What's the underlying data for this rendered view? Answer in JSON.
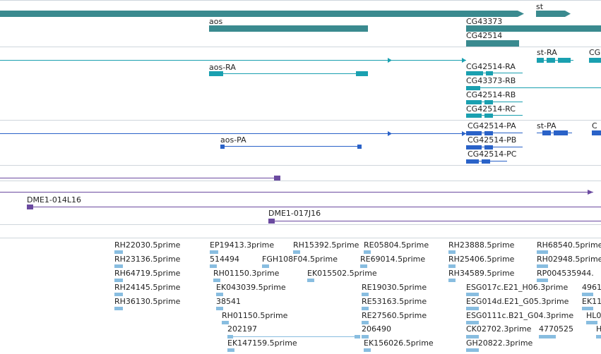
{
  "genes": {
    "labels": [
      "st",
      "aos",
      "CG43373",
      "CG42514"
    ]
  },
  "transcripts": {
    "labels": [
      "st-RA",
      "CG",
      "aos-RA",
      "CG42514-RA",
      "CG43373-RB",
      "CG42514-RB",
      "CG42514-RC"
    ]
  },
  "proteins": {
    "labels": [
      "CG42514-PA",
      "st-PA",
      "C",
      "aos-PA",
      "CG42514-PB",
      "CG42514-PC"
    ]
  },
  "clones": {
    "labels": [
      "DME1-014L16",
      "DME1-017J16"
    ]
  },
  "ests": {
    "labels": [
      "RH22030.5prime",
      "RH23136.5prime",
      "RH64719.5prime",
      "RH24145.5prime",
      "RH36130.5prime",
      "EP19413.3prime",
      "514494",
      "RH01150.3prime",
      "EK043039.5prime",
      "38541",
      "RH01150.5prime",
      "202197",
      "EK147159.5prime",
      "RH15392.5prime",
      "FGH108F04.5prime",
      "EK015502.5prime",
      "RE05804.5prime",
      "RE69014.5prime",
      "RE19030.5prime",
      "RE53163.5prime",
      "RE27560.5prime",
      "206490",
      "EK156026.5prime",
      "RH23888.5prime",
      "RH25406.5prime",
      "RH34589.5prime",
      "ESG017c.E21_H06.3prime",
      "ESG014d.E21_G05.3prime",
      "ESG0111c.B21_G04.3prime",
      "CK02702.3prime",
      "GH20822.3prime",
      "RH68540.5prime",
      "RH02948.5prime",
      "RP004535944.",
      "4961",
      "EK11",
      "HL0",
      "4770525",
      "H"
    ]
  }
}
